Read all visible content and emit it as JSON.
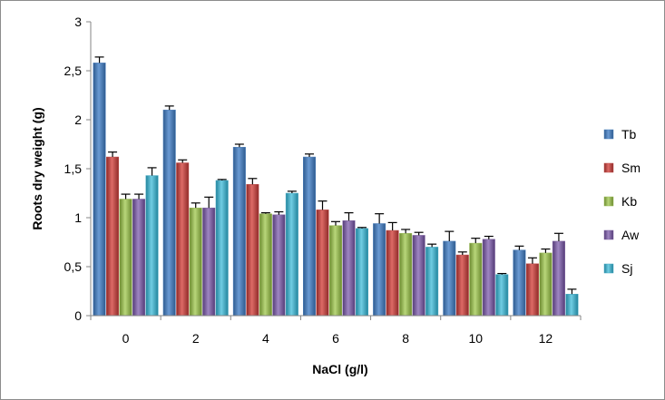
{
  "chart_data": {
    "type": "bar",
    "xlabel": "NaCl (g/l)",
    "ylabel": "Roots dry  weight (g)",
    "categories": [
      "0",
      "2",
      "4",
      "6",
      "8",
      "10",
      "12"
    ],
    "ylim": [
      0,
      3
    ],
    "yticks": [
      "0",
      "0,5",
      "1",
      "1,5",
      "2",
      "2,5",
      "3"
    ],
    "ytick_values": [
      0,
      0.5,
      1,
      1.5,
      2,
      2.5,
      3
    ],
    "grid": false,
    "legend_position": "right",
    "series": [
      {
        "name": "Tb",
        "color": "#4f81bd",
        "values": [
          2.58,
          2.1,
          1.72,
          1.62,
          0.94,
          0.76,
          0.67
        ],
        "errors": [
          0.06,
          0.04,
          0.03,
          0.03,
          0.1,
          0.1,
          0.04
        ]
      },
      {
        "name": "Sm",
        "color": "#c0504d",
        "values": [
          1.62,
          1.56,
          1.34,
          1.08,
          0.87,
          0.62,
          0.53
        ],
        "errors": [
          0.05,
          0.03,
          0.06,
          0.09,
          0.08,
          0.03,
          0.06
        ]
      },
      {
        "name": "Kb",
        "color": "#9bbb59",
        "values": [
          1.19,
          1.1,
          1.04,
          0.92,
          0.84,
          0.74,
          0.64
        ],
        "errors": [
          0.05,
          0.05,
          0.01,
          0.04,
          0.04,
          0.05,
          0.04
        ]
      },
      {
        "name": "Aw",
        "color": "#8064a2",
        "values": [
          1.19,
          1.1,
          1.03,
          0.97,
          0.82,
          0.78,
          0.76
        ],
        "errors": [
          0.05,
          0.11,
          0.03,
          0.08,
          0.03,
          0.03,
          0.08
        ]
      },
      {
        "name": "Sj",
        "color": "#4bacc6",
        "values": [
          1.43,
          1.38,
          1.25,
          0.89,
          0.7,
          0.42,
          0.22
        ],
        "errors": [
          0.08,
          0.01,
          0.02,
          0.01,
          0.03,
          0.01,
          0.05
        ]
      }
    ]
  }
}
